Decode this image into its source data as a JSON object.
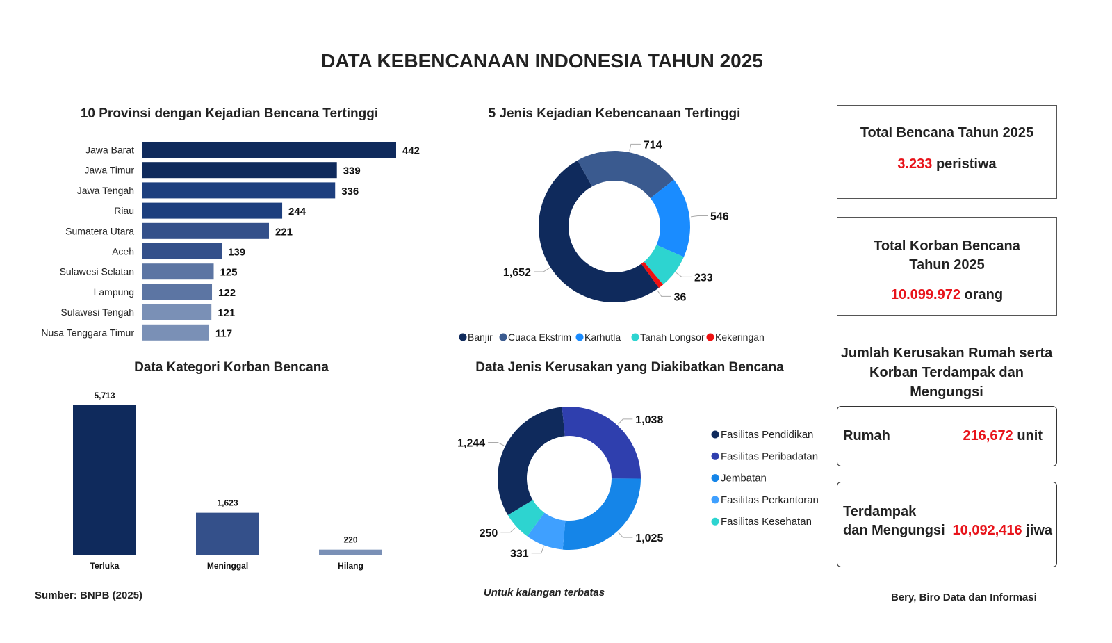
{
  "title": "DATA KEBENCANAAN INDONESIA TAHUN 2025",
  "chart_data": [
    {
      "type": "bar",
      "orientation": "horizontal",
      "title": "10 Provinsi dengan Kejadian Bencana Tertinggi",
      "categories": [
        "Jawa Barat",
        "Jawa Timur",
        "Jawa Tengah",
        "Riau",
        "Sumatera Utara",
        "Aceh",
        "Sulawesi Selatan",
        "Lampung",
        "Sulawesi Tengah",
        "Nusa Tenggara Timur"
      ],
      "values": [
        442,
        339,
        336,
        244,
        221,
        139,
        125,
        122,
        121,
        117
      ],
      "value_labels": [
        "442",
        "339",
        "336",
        "244",
        "221",
        "139",
        "125",
        "122",
        "121",
        "117"
      ],
      "colors": [
        "#0f2a5c",
        "#0f2a5c",
        "#1d3f7e",
        "#1d3f7e",
        "#34508a",
        "#34508a",
        "#5c75a3",
        "#5c75a3",
        "#7a90b6",
        "#7a90b6"
      ],
      "xlim": [
        0,
        442
      ]
    },
    {
      "type": "pie",
      "donut": true,
      "title": "5 Jenis Kejadian Kebencanaan Tertinggi",
      "categories": [
        "Banjir",
        "Cuaca Ekstrim",
        "Karhutla",
        "Tanah Longsor",
        "Kekeringan"
      ],
      "values": [
        1652,
        714,
        546,
        233,
        36
      ],
      "value_labels": [
        "1,652",
        "714",
        "546",
        "233",
        "36"
      ],
      "colors": [
        "#0f2a5c",
        "#3a5a8f",
        "#1a8cff",
        "#2dd4d0",
        "#ee1111"
      ],
      "legend": "bottom"
    },
    {
      "type": "bar",
      "title": "Data Kategori Korban Bencana",
      "categories": [
        "Terluka",
        "Meninggal",
        "Hilang"
      ],
      "values": [
        5713,
        1623,
        220
      ],
      "value_labels": [
        "5,713",
        "1,623",
        "220"
      ],
      "colors": [
        "#0f2a5c",
        "#34508a",
        "#7a90b6"
      ],
      "ylim": [
        0,
        5713
      ]
    },
    {
      "type": "pie",
      "donut": true,
      "title": "Data Jenis Kerusakan yang Diakibatkan Bencana",
      "categories": [
        "Fasilitas Pendidikan",
        "Fasilitas Peribadatan",
        "Jembatan",
        "Fasilitas Perkantoran",
        "Fasilitas Kesehatan"
      ],
      "values": [
        1244,
        1038,
        1025,
        331,
        250
      ],
      "value_labels": [
        "1,244",
        "1,038",
        "1,025",
        "331",
        "250"
      ],
      "colors": [
        "#0f2a5c",
        "#2f3fae",
        "#1585e8",
        "#3fa0ff",
        "#2dd4d0"
      ],
      "legend": "right"
    }
  ],
  "summary": {
    "total_bencana": {
      "label": "Total Bencana Tahun 2025",
      "value": "3.233",
      "unit": "peristiwa"
    },
    "total_korban": {
      "label": "Total Korban Bencana Tahun 2025",
      "value": "10.099.972",
      "unit": "orang"
    },
    "kerusakan_title": "Jumlah Kerusakan Rumah serta Korban Terdampak dan Mengungsi",
    "rumah": {
      "label": "Rumah",
      "value": "216,672",
      "unit": "unit"
    },
    "terdampak": {
      "label1": "Terdampak",
      "label2": "dan Mengungsi",
      "value": "10,092,416",
      "unit": "jiwa"
    }
  },
  "footer": {
    "source": "Sumber: BNPB (2025)",
    "note": "Untuk kalangan terbatas",
    "author": "Bery, Biro Data dan Informasi"
  }
}
